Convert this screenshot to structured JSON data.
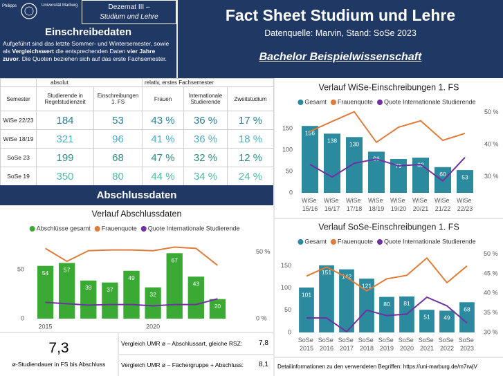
{
  "header": {
    "logo_text": [
      "Philipps",
      "Universität Marburg"
    ],
    "department": [
      "Dezernat III –",
      "Studium und Lehre"
    ],
    "title": "Fact Sheet Studium und Lehre",
    "source": "Datenquelle: Marvin, Stand: SoSe 2023",
    "subject": "Bachelor Beispielwissenschaft"
  },
  "enrollment": {
    "title": "Einschreibedaten",
    "description": [
      {
        "text": "Aufgeführt sind das letzte Sommer- und Wintersemester, sowie als "
      },
      {
        "text": "Vergleichswert",
        "bold": true
      },
      {
        "text": " die entsprechenden Daten "
      },
      {
        "text": "vier Jahre zuvor",
        "bold": true
      },
      {
        "text": ". Die Quoten beziehen sich auf das erste Fachsemester."
      }
    ]
  },
  "table": {
    "groups": [
      "absolut",
      "relativ, erstes Fachsemester"
    ],
    "columns": [
      "Semester",
      "Studierende in Regelstudienzeit",
      "Einschreibungen 1. FS",
      "Frauen",
      "Internationale Studierende",
      "Zweitstudium"
    ],
    "rows": [
      [
        "WiSe 22/23",
        "184",
        "53",
        "43 %",
        "36 %",
        "17 %"
      ],
      [
        "WiSe 18/19",
        "321",
        "96",
        "41 %",
        "36 %",
        "18 %"
      ],
      [
        "SoSe 23",
        "199",
        "68",
        "47 %",
        "32 %",
        "12 %"
      ],
      [
        "SoSe 19",
        "350",
        "80",
        "44 %",
        "34 %",
        "24 %"
      ]
    ],
    "row_colors": [
      "#2b7f96",
      "#4fb0c6",
      "#2e8c80",
      "#4fbca6"
    ]
  },
  "completion_title": "Abschlussdaten",
  "chart_data": [
    {
      "type": "combo",
      "title": "Verlauf Abschlussdaten",
      "x": [
        2015,
        2016,
        2017,
        2018,
        2019,
        2020,
        2021,
        2022,
        2023
      ],
      "xlim": [
        2014.5,
        2023.5
      ],
      "xticks": [
        2015,
        2020
      ],
      "ylim": [
        0,
        75
      ],
      "yticks": [
        0,
        50
      ],
      "y2lim": [
        0,
        55
      ],
      "y2ticks": [
        {
          "value": 0,
          "label": "0 %"
        },
        {
          "value": 50,
          "label": "50 %"
        }
      ],
      "series": [
        {
          "name": "Abschlüsse gesamt",
          "type": "bar",
          "color": "#3aaa35",
          "values": [
            54,
            57,
            39,
            37,
            49,
            32,
            67,
            43,
            20
          ]
        },
        {
          "name": "Frauenquote",
          "type": "line",
          "axis": "y2",
          "color": "#e07b39",
          "values": [
            52.7,
            43,
            51,
            51.6,
            51.6,
            51,
            53.7,
            52.7,
            40
          ]
        },
        {
          "name": "Quote Internationale Studierende",
          "type": "line",
          "axis": "y2",
          "color": "#7030a0",
          "values": [
            12.2,
            11.2,
            10.1,
            10.6,
            10.6,
            9.6,
            10.6,
            10.6,
            14.9
          ]
        }
      ]
    },
    {
      "type": "combo",
      "title": "Verlauf WiSe-Einschreibungen 1. FS",
      "categories": [
        "WiSe 15/16",
        "WiSe 16/17",
        "WiSe 17/18",
        "WiSe 18/19",
        "WiSe 19/20",
        "WiSe 20/21",
        "WiSe 21/22",
        "WiSe 22/23"
      ],
      "ylim": [
        0,
        195
      ],
      "yticks": [
        0,
        50,
        100,
        150
      ],
      "y2lim": [
        25,
        51
      ],
      "y2ticks": [
        {
          "value": 30,
          "label": "30 %"
        },
        {
          "value": 40,
          "label": "40 %"
        },
        {
          "value": 50,
          "label": "50 %"
        }
      ],
      "series": [
        {
          "name": "Gesamt",
          "type": "bar",
          "color": "#2b8a9e",
          "values": [
            156,
            138,
            130,
            96,
            79,
            82,
            60,
            53
          ]
        },
        {
          "name": "Frauenquote",
          "type": "line",
          "axis": "y2",
          "color": "#e07b39",
          "values": [
            44.1,
            47.2,
            50.2,
            40.7,
            45.4,
            47.4,
            41.3,
            43.5
          ]
        },
        {
          "name": "Quote Internationale Studierende",
          "type": "line",
          "axis": "y2",
          "color": "#7030a0",
          "values": [
            33.8,
            29.9,
            34.2,
            35.5,
            33.4,
            33.8,
            28.7,
            36.0
          ]
        }
      ]
    },
    {
      "type": "combo",
      "title": "Verlauf SoSe-Einschreibungen 1. FS",
      "categories": [
        "SoSe 2015",
        "SoSe 2016",
        "SoSe 2017",
        "SoSe 2018",
        "SoSe 2019",
        "SoSe 2020",
        "SoSe 2021",
        "SoSe 2022",
        "SoSe 2023"
      ],
      "ylim": [
        0,
        185
      ],
      "yticks": [
        0,
        50,
        100,
        150
      ],
      "y2lim": [
        30,
        51
      ],
      "y2ticks": [
        {
          "value": 30,
          "label": "30 %"
        },
        {
          "value": 35,
          "label": "35 %"
        },
        {
          "value": 40,
          "label": "40 %"
        },
        {
          "value": 45,
          "label": "45 %"
        },
        {
          "value": 50,
          "label": "50 %"
        }
      ],
      "series": [
        {
          "name": "Gesamt",
          "type": "bar",
          "color": "#2b8a9e",
          "values": [
            101,
            151,
            142,
            121,
            80,
            81,
            51,
            49,
            68
          ]
        },
        {
          "name": "Frauenquote",
          "type": "line",
          "axis": "y2",
          "color": "#e07b39",
          "values": [
            44.4,
            46.7,
            44.1,
            40.6,
            43.7,
            44.6,
            49.0,
            42.7,
            47.0
          ]
        },
        {
          "name": "Quote Internationale Studierende",
          "type": "line",
          "axis": "y2",
          "color": "#7030a0",
          "values": [
            33.7,
            33.7,
            30.2,
            35.7,
            34.3,
            34.7,
            39.0,
            36.8,
            32.4
          ]
        }
      ]
    }
  ],
  "kpi": {
    "value": "7,3",
    "label": "ø-Studiendauer in FS bis Abschluss"
  },
  "comparisons": [
    {
      "label": "Vergleich UMR ø – Abschlussart, gleiche RSZ:",
      "value": "7,8"
    },
    {
      "label": "Vergleich UMR ø – Fächergruppe + Abschluss:",
      "value": "8,1"
    }
  ],
  "footer": "Detailinformationen zu den verwendeten Begriffen: https://uni-marburg.de/m7rwjV"
}
